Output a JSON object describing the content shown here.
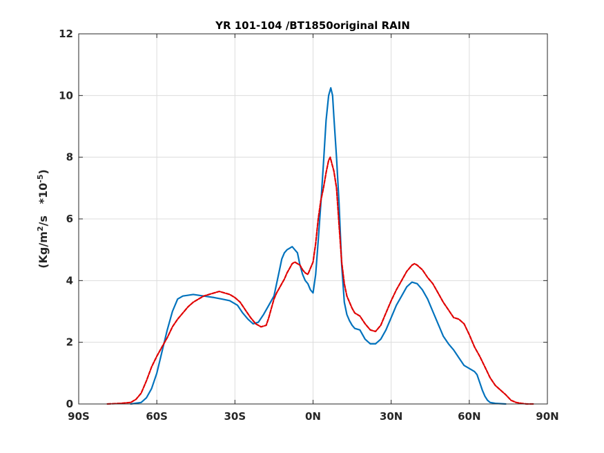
{
  "chart_data": {
    "type": "line",
    "title": "YR 101-104 /BT1850original RAIN",
    "ylabel": {
      "prefix": "(Kg/m",
      "sup1": "2",
      "middle": "/s   *10",
      "sup2": "-5",
      "suffix": ")"
    },
    "xlabel": "",
    "xlim": [
      -90,
      90
    ],
    "ylim": [
      0,
      12
    ],
    "grid": true,
    "x_ticks": [
      {
        "value": -90,
        "label": "90S"
      },
      {
        "value": -60,
        "label": "60S"
      },
      {
        "value": -30,
        "label": "30S"
      },
      {
        "value": 0,
        "label": "0N"
      },
      {
        "value": 30,
        "label": "30N"
      },
      {
        "value": 60,
        "label": "60N"
      },
      {
        "value": 90,
        "label": "90N"
      }
    ],
    "y_ticks": [
      {
        "value": 0,
        "label": "0"
      },
      {
        "value": 2,
        "label": "2"
      },
      {
        "value": 4,
        "label": "4"
      },
      {
        "value": 6,
        "label": "6"
      },
      {
        "value": 8,
        "label": "8"
      },
      {
        "value": 10,
        "label": "10"
      },
      {
        "value": 12,
        "label": "12"
      }
    ],
    "series": [
      {
        "color": "#0072BD",
        "style": "solid",
        "points": [
          [
            -70,
            0.0
          ],
          [
            -66,
            0.05
          ],
          [
            -64,
            0.2
          ],
          [
            -62,
            0.5
          ],
          [
            -60,
            1.0
          ],
          [
            -58,
            1.7
          ],
          [
            -56,
            2.4
          ],
          [
            -54,
            3.0
          ],
          [
            -52,
            3.4
          ],
          [
            -50,
            3.5
          ],
          [
            -46,
            3.55
          ],
          [
            -42,
            3.5
          ],
          [
            -38,
            3.45
          ],
          [
            -35,
            3.4
          ],
          [
            -32,
            3.35
          ],
          [
            -29,
            3.2
          ],
          [
            -27,
            2.95
          ],
          [
            -25,
            2.75
          ],
          [
            -23,
            2.6
          ],
          [
            -21,
            2.65
          ],
          [
            -19,
            2.9
          ],
          [
            -17,
            3.2
          ],
          [
            -15,
            3.5
          ],
          [
            -14,
            3.9
          ],
          [
            -13,
            4.3
          ],
          [
            -12,
            4.7
          ],
          [
            -11,
            4.9
          ],
          [
            -10,
            5.0
          ],
          [
            -9,
            5.05
          ],
          [
            -8,
            5.1
          ],
          [
            -7,
            5.0
          ],
          [
            -6,
            4.9
          ],
          [
            -5,
            4.5
          ],
          [
            -4,
            4.2
          ],
          [
            -3,
            4.0
          ],
          [
            -2,
            3.9
          ],
          [
            -1,
            3.7
          ],
          [
            0,
            3.6
          ],
          [
            1,
            4.2
          ],
          [
            2,
            5.3
          ],
          [
            3,
            6.5
          ],
          [
            4,
            7.8
          ],
          [
            5,
            9.2
          ],
          [
            6,
            10.0
          ],
          [
            6.8,
            10.25
          ],
          [
            7.5,
            10.0
          ],
          [
            8,
            9.3
          ],
          [
            9,
            8.0
          ],
          [
            10,
            6.5
          ],
          [
            11,
            4.5
          ],
          [
            12,
            3.3
          ],
          [
            13,
            2.9
          ],
          [
            14,
            2.7
          ],
          [
            15,
            2.55
          ],
          [
            16,
            2.45
          ],
          [
            18,
            2.4
          ],
          [
            20,
            2.1
          ],
          [
            22,
            1.95
          ],
          [
            24,
            1.95
          ],
          [
            26,
            2.1
          ],
          [
            28,
            2.4
          ],
          [
            30,
            2.8
          ],
          [
            32,
            3.2
          ],
          [
            34,
            3.5
          ],
          [
            36,
            3.8
          ],
          [
            38,
            3.95
          ],
          [
            40,
            3.9
          ],
          [
            42,
            3.7
          ],
          [
            44,
            3.4
          ],
          [
            46,
            3.0
          ],
          [
            48,
            2.6
          ],
          [
            50,
            2.2
          ],
          [
            52,
            1.95
          ],
          [
            54,
            1.75
          ],
          [
            56,
            1.5
          ],
          [
            58,
            1.25
          ],
          [
            60,
            1.15
          ],
          [
            62,
            1.05
          ],
          [
            63,
            0.95
          ],
          [
            64,
            0.7
          ],
          [
            65,
            0.45
          ],
          [
            66,
            0.25
          ],
          [
            67,
            0.12
          ],
          [
            68,
            0.05
          ],
          [
            70,
            0.02
          ],
          [
            74,
            0.0
          ]
        ]
      },
      {
        "color": "#E00000",
        "style": "dashed",
        "points": [
          [
            -79,
            0.0
          ],
          [
            -74,
            0.02
          ],
          [
            -70,
            0.05
          ],
          [
            -68,
            0.15
          ],
          [
            -66,
            0.35
          ],
          [
            -64,
            0.75
          ],
          [
            -62,
            1.2
          ],
          [
            -60,
            1.55
          ],
          [
            -58,
            1.85
          ],
          [
            -56,
            2.15
          ],
          [
            -54,
            2.5
          ],
          [
            -52,
            2.75
          ],
          [
            -50,
            2.95
          ],
          [
            -48,
            3.15
          ],
          [
            -46,
            3.3
          ],
          [
            -44,
            3.4
          ],
          [
            -42,
            3.5
          ],
          [
            -40,
            3.55
          ],
          [
            -38,
            3.6
          ],
          [
            -36,
            3.65
          ],
          [
            -34,
            3.6
          ],
          [
            -32,
            3.55
          ],
          [
            -30,
            3.45
          ],
          [
            -28,
            3.3
          ],
          [
            -26,
            3.05
          ],
          [
            -24,
            2.8
          ],
          [
            -22,
            2.6
          ],
          [
            -20,
            2.5
          ],
          [
            -18,
            2.55
          ],
          [
            -17,
            2.8
          ],
          [
            -16,
            3.1
          ],
          [
            -15,
            3.4
          ],
          [
            -14,
            3.6
          ],
          [
            -13,
            3.75
          ],
          [
            -12,
            3.9
          ],
          [
            -11,
            4.05
          ],
          [
            -10,
            4.25
          ],
          [
            -9,
            4.4
          ],
          [
            -8,
            4.55
          ],
          [
            -7,
            4.6
          ],
          [
            -6,
            4.55
          ],
          [
            -5,
            4.5
          ],
          [
            -4,
            4.35
          ],
          [
            -3,
            4.25
          ],
          [
            -2,
            4.2
          ],
          [
            -1,
            4.4
          ],
          [
            0,
            4.6
          ],
          [
            1,
            5.2
          ],
          [
            2,
            6.0
          ],
          [
            3,
            6.6
          ],
          [
            4,
            7.0
          ],
          [
            5,
            7.5
          ],
          [
            6,
            7.9
          ],
          [
            6.6,
            8.0
          ],
          [
            7.2,
            7.8
          ],
          [
            8,
            7.55
          ],
          [
            9,
            7.0
          ],
          [
            10,
            5.8
          ],
          [
            11,
            4.6
          ],
          [
            12,
            3.9
          ],
          [
            13,
            3.5
          ],
          [
            14,
            3.3
          ],
          [
            15,
            3.1
          ],
          [
            16,
            2.95
          ],
          [
            18,
            2.85
          ],
          [
            20,
            2.6
          ],
          [
            22,
            2.4
          ],
          [
            24,
            2.35
          ],
          [
            26,
            2.55
          ],
          [
            28,
            2.95
          ],
          [
            30,
            3.35
          ],
          [
            32,
            3.7
          ],
          [
            34,
            4.0
          ],
          [
            36,
            4.3
          ],
          [
            38,
            4.5
          ],
          [
            39,
            4.55
          ],
          [
            40,
            4.5
          ],
          [
            42,
            4.35
          ],
          [
            44,
            4.1
          ],
          [
            46,
            3.9
          ],
          [
            48,
            3.6
          ],
          [
            50,
            3.3
          ],
          [
            52,
            3.05
          ],
          [
            54,
            2.8
          ],
          [
            56,
            2.75
          ],
          [
            58,
            2.6
          ],
          [
            60,
            2.25
          ],
          [
            62,
            1.85
          ],
          [
            64,
            1.55
          ],
          [
            66,
            1.2
          ],
          [
            68,
            0.85
          ],
          [
            70,
            0.6
          ],
          [
            72,
            0.45
          ],
          [
            74,
            0.3
          ],
          [
            76,
            0.12
          ],
          [
            78,
            0.05
          ],
          [
            80,
            0.02
          ],
          [
            82,
            0.0
          ],
          [
            85,
            0.0
          ]
        ]
      }
    ]
  }
}
